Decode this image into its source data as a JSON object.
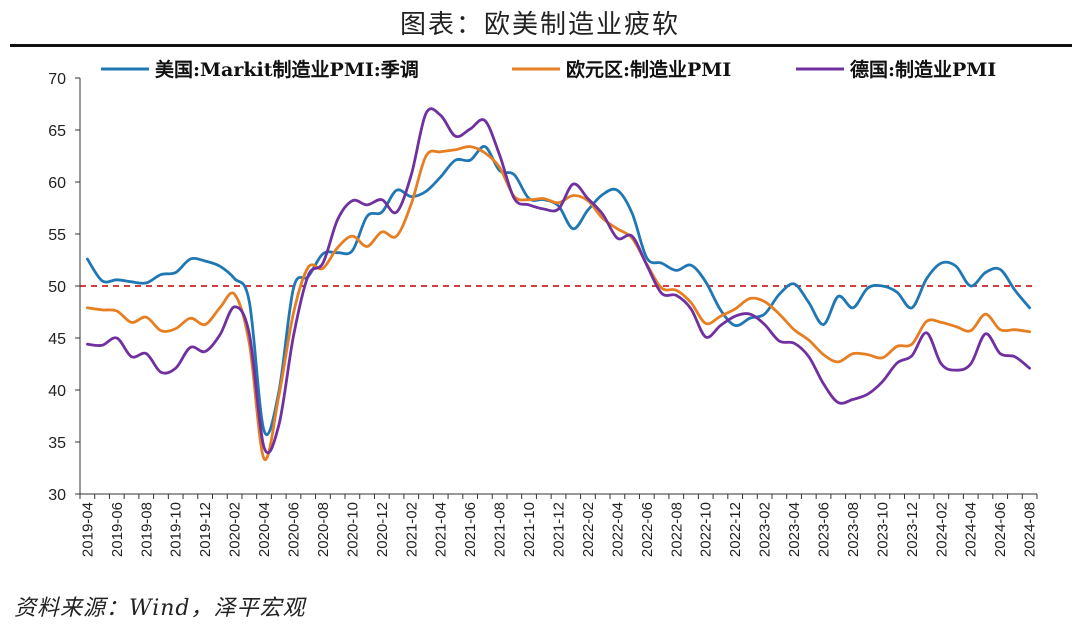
{
  "title": "图表：欧美制造业疲软",
  "source": "资料来源：Wind，泽平宏观",
  "chart_data": {
    "type": "line",
    "title": "图表：欧美制造业疲软",
    "xlabel": "",
    "ylabel": "",
    "ylim": [
      30,
      70
    ],
    "yticks": [
      30,
      35,
      40,
      45,
      50,
      55,
      60,
      65,
      70
    ],
    "grid": false,
    "legend_position": "top",
    "reference_line": {
      "value": 50,
      "style": "dashed",
      "color": "#c00000"
    },
    "x": [
      "2019-04",
      "2019-05",
      "2019-06",
      "2019-07",
      "2019-08",
      "2019-09",
      "2019-10",
      "2019-11",
      "2019-12",
      "2020-01",
      "2020-02",
      "2020-03",
      "2020-04",
      "2020-05",
      "2020-06",
      "2020-07",
      "2020-08",
      "2020-09",
      "2020-10",
      "2020-11",
      "2020-12",
      "2021-01",
      "2021-02",
      "2021-03",
      "2021-04",
      "2021-05",
      "2021-06",
      "2021-07",
      "2021-08",
      "2021-09",
      "2021-10",
      "2021-11",
      "2021-12",
      "2022-01",
      "2022-02",
      "2022-03",
      "2022-04",
      "2022-05",
      "2022-06",
      "2022-07",
      "2022-08",
      "2022-09",
      "2022-10",
      "2022-11",
      "2022-12",
      "2023-01",
      "2023-02",
      "2023-03",
      "2023-04",
      "2023-05",
      "2023-06",
      "2023-07",
      "2023-08",
      "2023-09",
      "2023-10",
      "2023-11",
      "2023-12",
      "2024-01",
      "2024-02",
      "2024-03",
      "2024-04",
      "2024-05",
      "2024-06",
      "2024-07",
      "2024-08"
    ],
    "x_tick_labels": [
      "2019-04",
      "2019-06",
      "2019-08",
      "2019-10",
      "2019-12",
      "2020-02",
      "2020-04",
      "2020-06",
      "2020-08",
      "2020-10",
      "2020-12",
      "2021-02",
      "2021-04",
      "2021-06",
      "2021-08",
      "2021-10",
      "2021-12",
      "2022-02",
      "2022-04",
      "2022-06",
      "2022-08",
      "2022-10",
      "2022-12",
      "2023-02",
      "2023-04",
      "2023-06",
      "2023-08",
      "2023-10",
      "2023-12",
      "2024-02",
      "2024-04",
      "2024-06",
      "2024-08"
    ],
    "series": [
      {
        "name": "美国:Markit制造业PMI:季调",
        "color": "#1f77b4",
        "values": [
          52.6,
          50.5,
          50.6,
          50.4,
          50.3,
          51.1,
          51.3,
          52.6,
          52.4,
          51.9,
          50.7,
          48.5,
          36.1,
          39.8,
          49.8,
          50.9,
          53.1,
          53.2,
          53.4,
          56.7,
          57.1,
          59.2,
          58.6,
          59.1,
          60.5,
          62.1,
          62.1,
          63.4,
          61.1,
          60.7,
          58.4,
          58.3,
          57.7,
          55.5,
          57.3,
          58.8,
          59.2,
          57.0,
          52.7,
          52.2,
          51.5,
          52.0,
          50.4,
          47.7,
          46.2,
          46.9,
          47.3,
          49.2,
          50.2,
          48.4,
          46.3,
          49.0,
          47.9,
          49.8,
          50.0,
          49.4,
          47.9,
          50.7,
          52.2,
          51.9,
          50.0,
          51.3,
          51.6,
          49.6,
          47.9
        ]
      },
      {
        "name": "欧元区:制造业PMI",
        "color": "#e67e22",
        "values": [
          47.9,
          47.7,
          47.6,
          46.5,
          47.0,
          45.7,
          45.9,
          46.9,
          46.3,
          47.9,
          49.2,
          44.5,
          33.4,
          39.4,
          47.4,
          51.8,
          51.7,
          53.7,
          54.8,
          53.8,
          55.2,
          54.8,
          57.9,
          62.5,
          62.9,
          63.1,
          63.4,
          62.8,
          61.4,
          58.6,
          58.3,
          58.4,
          58.0,
          58.7,
          58.2,
          56.5,
          55.5,
          54.6,
          52.1,
          49.8,
          49.6,
          48.4,
          46.4,
          47.1,
          47.8,
          48.8,
          48.5,
          47.3,
          45.8,
          44.8,
          43.4,
          42.7,
          43.5,
          43.4,
          43.1,
          44.2,
          44.4,
          46.6,
          46.5,
          46.1,
          45.7,
          47.3,
          45.8,
          45.8,
          45.6
        ]
      },
      {
        "name": "德国:制造业PMI",
        "color": "#7030a0",
        "values": [
          44.4,
          44.3,
          45.0,
          43.2,
          43.5,
          41.7,
          42.1,
          44.1,
          43.7,
          45.3,
          48.0,
          45.4,
          34.5,
          36.6,
          45.2,
          51.0,
          52.2,
          56.4,
          58.2,
          57.8,
          58.3,
          57.1,
          60.7,
          66.6,
          66.4,
          64.4,
          65.1,
          65.9,
          62.6,
          58.4,
          57.8,
          57.4,
          57.4,
          59.8,
          58.4,
          56.9,
          54.6,
          54.8,
          52.0,
          49.3,
          49.1,
          47.8,
          45.1,
          46.2,
          47.1,
          47.3,
          46.3,
          44.7,
          44.5,
          43.2,
          40.6,
          38.8,
          39.1,
          39.6,
          40.8,
          42.6,
          43.3,
          45.5,
          42.5,
          41.9,
          42.5,
          45.4,
          43.5,
          43.2,
          42.1
        ]
      }
    ]
  }
}
